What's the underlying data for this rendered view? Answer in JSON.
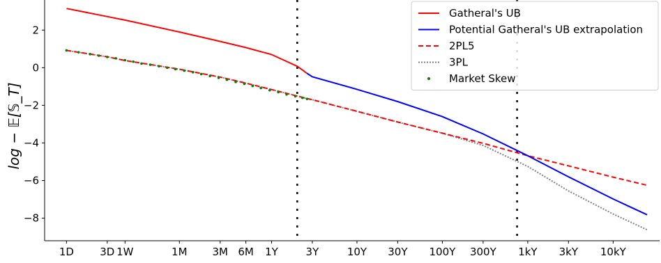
{
  "chart_data": {
    "type": "line",
    "title": "",
    "xlabel": "",
    "ylabel": "log − 𝔼[𝕊_T]",
    "x_scale": "log",
    "x_unit": "years",
    "xlim": [
      0.0022,
      35000
    ],
    "ylim": [
      -9.2,
      3.6
    ],
    "grid": false,
    "legend_position": "top-right",
    "x_ticks": [
      {
        "label": "1D",
        "value": 0.003968
      },
      {
        "label": "3D",
        "value": 0.011905
      },
      {
        "label": "1W",
        "value": 0.019231
      },
      {
        "label": "1M",
        "value": 0.083333
      },
      {
        "label": "3M",
        "value": 0.25
      },
      {
        "label": "6M",
        "value": 0.5
      },
      {
        "label": "1Y",
        "value": 1
      },
      {
        "label": "3Y",
        "value": 3
      },
      {
        "label": "10Y",
        "value": 10
      },
      {
        "label": "30Y",
        "value": 30
      },
      {
        "label": "100Y",
        "value": 100
      },
      {
        "label": "300Y",
        "value": 300
      },
      {
        "label": "1kY",
        "value": 1000
      },
      {
        "label": "3kY",
        "value": 3000
      },
      {
        "label": "10kY",
        "value": 10000
      }
    ],
    "y_ticks": [
      2,
      0,
      -2,
      -4,
      -6,
      -8
    ],
    "vlines": [
      2,
      750
    ],
    "series": [
      {
        "name": "Gatheral's UB",
        "color": "#ff0000",
        "style": "solid",
        "x": [
          0.003968,
          0.011905,
          0.019231,
          0.083333,
          0.25,
          0.5,
          1,
          2,
          2.6
        ],
        "y": [
          3.15,
          2.72,
          2.53,
          1.9,
          1.4,
          1.07,
          0.7,
          0.08,
          -0.3
        ]
      },
      {
        "name": "Potential Gatheral's UB extrapolation",
        "color": "#0000ff",
        "style": "solid",
        "x": [
          2.6,
          3,
          10,
          30,
          100,
          300,
          1000,
          3000,
          10000,
          25000
        ],
        "y": [
          -0.3,
          -0.48,
          -1.15,
          -1.8,
          -2.6,
          -3.52,
          -4.68,
          -5.8,
          -6.98,
          -7.82
        ]
      },
      {
        "name": "2PL5",
        "color": "#ff0000",
        "style": "dashed",
        "x": [
          0.003968,
          0.011905,
          0.019231,
          0.083333,
          0.25,
          0.5,
          1,
          2.6,
          3,
          10,
          30,
          100,
          300,
          1000,
          3000,
          10000,
          25000
        ],
        "y": [
          0.92,
          0.58,
          0.38,
          -0.08,
          -0.5,
          -0.82,
          -1.16,
          -1.64,
          -1.7,
          -2.32,
          -2.89,
          -3.48,
          -4.02,
          -4.68,
          -5.22,
          -5.82,
          -6.25
        ]
      },
      {
        "name": "3PL",
        "color": "#808080",
        "style": "dotted",
        "x": [
          0.003968,
          0.011905,
          0.019231,
          0.083333,
          0.25,
          0.5,
          1,
          2.6,
          3,
          10,
          30,
          100,
          300,
          1000,
          3000,
          10000,
          25000
        ],
        "y": [
          0.92,
          0.58,
          0.38,
          -0.08,
          -0.5,
          -0.82,
          -1.16,
          -1.64,
          -1.7,
          -2.32,
          -2.89,
          -3.48,
          -4.13,
          -5.25,
          -6.55,
          -7.78,
          -8.62
        ]
      },
      {
        "name": "Market Skew",
        "color": "#008000",
        "style": "markers",
        "x": [
          0.003968,
          0.0055,
          0.0075,
          0.0095,
          0.011905,
          0.015,
          0.019231,
          0.024,
          0.03,
          0.038,
          0.048,
          0.06,
          0.075,
          0.095,
          0.12,
          0.15,
          0.19,
          0.24,
          0.3,
          0.38,
          0.48,
          0.6,
          0.75,
          0.95,
          1.2,
          1.5,
          1.9,
          2.3,
          2.6
        ],
        "y": [
          0.92,
          0.82,
          0.72,
          0.64,
          0.57,
          0.5,
          0.4,
          0.32,
          0.22,
          0.16,
          0.08,
          0.0,
          -0.08,
          -0.16,
          -0.24,
          -0.34,
          -0.44,
          -0.54,
          -0.64,
          -0.76,
          -0.86,
          -0.97,
          -1.08,
          -1.2,
          -1.3,
          -1.42,
          -1.52,
          -1.6,
          -1.66
        ]
      }
    ]
  }
}
